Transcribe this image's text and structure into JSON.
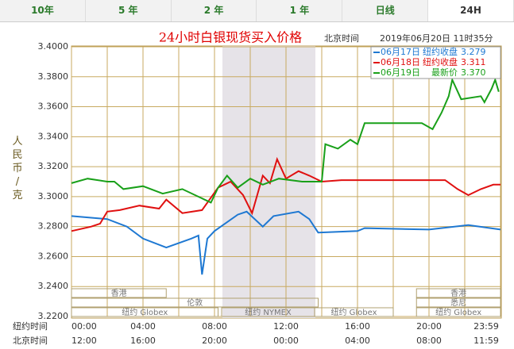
{
  "tabs": [
    "10年",
    "5 年",
    "2 年",
    "1 年",
    "日线",
    "24H"
  ],
  "active_tab": 5,
  "chart_data": {
    "type": "line",
    "title": "24小时白银现货买入价格",
    "time_label": "北京时间",
    "timestamp": "2019年06月20日 11时35分",
    "y_label": "人民币/克",
    "x_row_labels": [
      "纽约时间",
      "北京时间"
    ],
    "ylim": [
      3.22,
      3.4
    ],
    "yticks": [
      {
        "value": 3.22,
        "label": "3.2200"
      },
      {
        "value": 3.24,
        "label": "3.2400"
      },
      {
        "value": 3.26,
        "label": "3.2600"
      },
      {
        "value": 3.28,
        "label": "3.2800"
      },
      {
        "value": 3.3,
        "label": "3.3000"
      },
      {
        "value": 3.32,
        "label": "3.3200"
      },
      {
        "value": 3.34,
        "label": "3.3400"
      },
      {
        "value": 3.36,
        "label": "3.3600"
      },
      {
        "value": 3.38,
        "label": "3.3800"
      },
      {
        "value": 3.4,
        "label": "3.4000"
      }
    ],
    "xlim": [
      0,
      24
    ],
    "xticks": [
      {
        "value": 0,
        "label": "00:00"
      },
      {
        "value": 4,
        "label": "04:00"
      },
      {
        "value": 8,
        "label": "08:00"
      },
      {
        "value": 12,
        "label": "12:00"
      },
      {
        "value": 16,
        "label": "16:00"
      },
      {
        "value": 20,
        "label": "20:00"
      },
      {
        "value": 24,
        "label": "23:59"
      }
    ],
    "x2ticks": [
      {
        "value": 0,
        "label": "12:00"
      },
      {
        "value": 4,
        "label": "16:00"
      },
      {
        "value": 8,
        "label": "20:00"
      },
      {
        "value": 12,
        "label": "00:00"
      },
      {
        "value": 16,
        "label": "04:00"
      },
      {
        "value": 20,
        "label": "08:00"
      },
      {
        "value": 24,
        "label": "11:59"
      }
    ],
    "grid": true,
    "sessions": [
      "香港",
      "伦敦",
      "纽约 Globex",
      "纽约 NYMEX",
      "纽约 Globex",
      "纽约 Globex",
      "香港",
      "悉尼"
    ],
    "series": [
      {
        "name": "06月17日",
        "note": "纽约收盘",
        "last": {
          "value": 3.279,
          "label": "3.279"
        },
        "color": "#1e78d2",
        "x": [
          0,
          2,
          3.1,
          4,
          5.3,
          6.7,
          7.1,
          7.3,
          7.6,
          8,
          9.3,
          9.8,
          10.7,
          11.3,
          12.7,
          13.3,
          13.8,
          16,
          16.4,
          20,
          22.2,
          24
        ],
        "values": [
          3.287,
          3.285,
          3.28,
          3.272,
          3.266,
          3.272,
          3.274,
          3.248,
          3.272,
          3.277,
          3.288,
          3.29,
          3.28,
          3.287,
          3.29,
          3.285,
          3.276,
          3.277,
          3.279,
          3.278,
          3.281,
          3.278
        ]
      },
      {
        "name": "06月18日",
        "note": "纽约收盘",
        "last": {
          "value": 3.311,
          "label": "3.311"
        },
        "color": "#e01010",
        "x": [
          0,
          1.1,
          1.6,
          2,
          2.7,
          3.8,
          4.9,
          5.3,
          6.2,
          7.3,
          8.2,
          8.9,
          9.6,
          10.1,
          10.7,
          11.1,
          11.5,
          12,
          12.7,
          13.3,
          14,
          15.1,
          20,
          20.9,
          21.6,
          22.2,
          22.9,
          23.6,
          24
        ],
        "values": [
          3.277,
          3.28,
          3.282,
          3.29,
          3.291,
          3.294,
          3.292,
          3.298,
          3.289,
          3.291,
          3.306,
          3.31,
          3.301,
          3.289,
          3.314,
          3.309,
          3.325,
          3.312,
          3.317,
          3.314,
          3.31,
          3.311,
          3.311,
          3.311,
          3.305,
          3.301,
          3.305,
          3.308,
          3.308
        ]
      },
      {
        "name": "06月19日",
        "note": "最新价",
        "last": {
          "value": 3.37,
          "label": "3.370"
        },
        "color": "#19a019",
        "x": [
          0,
          0.9,
          2,
          2.4,
          2.9,
          4,
          5.1,
          6.2,
          7.8,
          8.2,
          8.7,
          9.3,
          10,
          10.7,
          11.6,
          12.9,
          14,
          14.2,
          14.9,
          15.6,
          16,
          16.4,
          19.6,
          20.2,
          20.7,
          21.1,
          21.3,
          21.8,
          22.9,
          23.1,
          23.5,
          23.7,
          23.9
        ],
        "values": [
          3.309,
          3.312,
          3.31,
          3.31,
          3.305,
          3.307,
          3.302,
          3.305,
          3.296,
          3.306,
          3.314,
          3.306,
          3.312,
          3.308,
          3.312,
          3.31,
          3.31,
          3.335,
          3.332,
          3.338,
          3.335,
          3.349,
          3.349,
          3.345,
          3.356,
          3.367,
          3.378,
          3.365,
          3.367,
          3.363,
          3.372,
          3.378,
          3.37
        ]
      }
    ]
  }
}
